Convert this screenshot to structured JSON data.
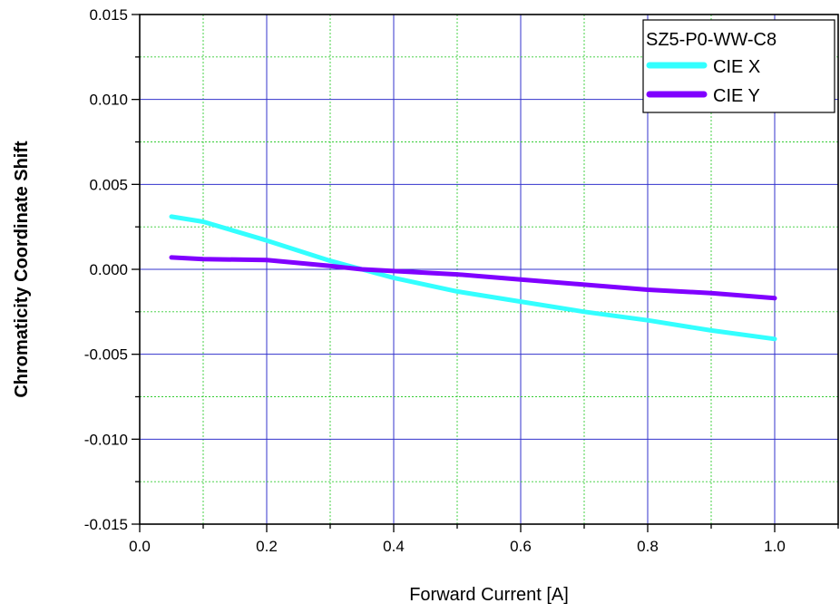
{
  "chart_data": {
    "type": "line",
    "title": "",
    "xlabel": "Forward Current [A]",
    "ylabel": "Chromaticity Coordinate Shift",
    "xlim": [
      0.0,
      1.1
    ],
    "ylim": [
      -0.015,
      0.015
    ],
    "x_ticks": [
      "0.0",
      "0.2",
      "0.4",
      "0.6",
      "0.8",
      "1.0"
    ],
    "y_ticks": [
      "0.015",
      "0.010",
      "0.005",
      "0.000",
      "-0.005",
      "-0.010",
      "-0.015"
    ],
    "grid": true,
    "legend": {
      "title": "SZ5-P0-WW-C8",
      "placement": "top-right"
    },
    "series": [
      {
        "name": "CIE X",
        "color": "#33ffff",
        "x": [
          0.05,
          0.1,
          0.2,
          0.3,
          0.35,
          0.4,
          0.5,
          0.6,
          0.7,
          0.8,
          0.9,
          1.0
        ],
        "y": [
          0.0031,
          0.0028,
          0.0017,
          0.0005,
          0.0,
          -0.0005,
          -0.0013,
          -0.0019,
          -0.0025,
          -0.003,
          -0.0036,
          -0.0041
        ]
      },
      {
        "name": "CIE Y",
        "color": "#8000ff",
        "x": [
          0.05,
          0.1,
          0.2,
          0.3,
          0.35,
          0.4,
          0.5,
          0.6,
          0.7,
          0.8,
          0.9,
          1.0
        ],
        "y": [
          0.0007,
          0.0006,
          0.00055,
          0.0002,
          0.0,
          -0.0001,
          -0.0003,
          -0.0006,
          -0.0009,
          -0.0012,
          -0.0014,
          -0.0017
        ]
      }
    ]
  }
}
